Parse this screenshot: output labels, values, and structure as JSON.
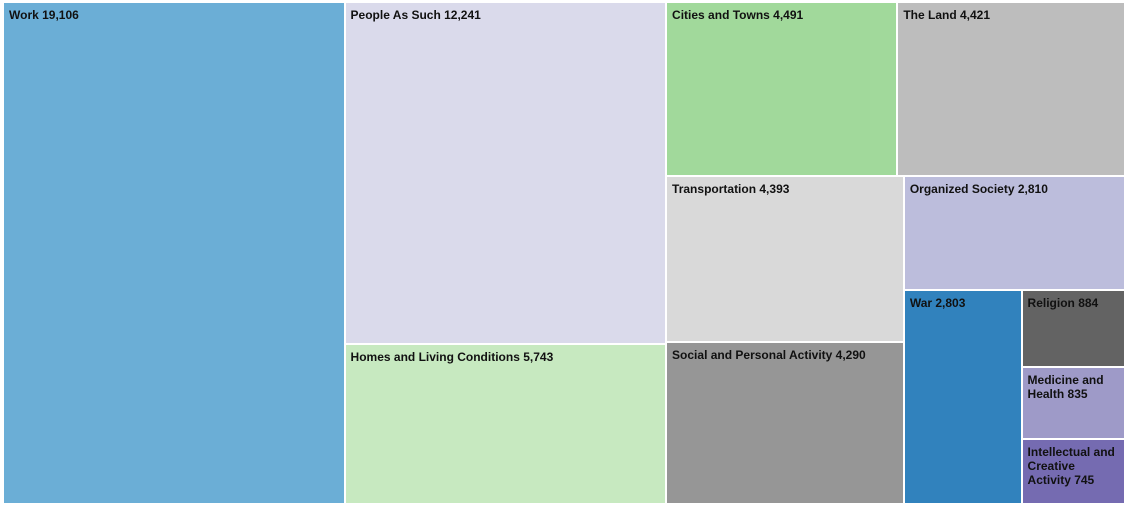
{
  "chart_data": {
    "type": "treemap",
    "items": [
      {
        "name": "Work",
        "value": 19106,
        "label": "Work 19,106",
        "color": "#6baed6"
      },
      {
        "name": "People As Such",
        "value": 12241,
        "label": "People As Such 12,241",
        "color": "#dadaeb"
      },
      {
        "name": "Homes and Living Conditions",
        "value": 5743,
        "label": "Homes and Living Conditions 5,743",
        "color": "#c7e9c0"
      },
      {
        "name": "Cities and Towns",
        "value": 4491,
        "label": "Cities and Towns 4,491",
        "color": "#a1d99b"
      },
      {
        "name": "The Land",
        "value": 4421,
        "label": "The Land 4,421",
        "color": "#bdbdbd"
      },
      {
        "name": "Transportation",
        "value": 4393,
        "label": "Transportation 4,393",
        "color": "#d9d9d9"
      },
      {
        "name": "Social and Personal Activity",
        "value": 4290,
        "label": "Social and Personal Activity 4,290",
        "color": "#969696"
      },
      {
        "name": "Organized Society",
        "value": 2810,
        "label": "Organized Society 2,810",
        "color": "#bcbddc"
      },
      {
        "name": "War",
        "value": 2803,
        "label": "War 2,803",
        "color": "#3182bd"
      },
      {
        "name": "Religion",
        "value": 884,
        "label": "Religion 884",
        "color": "#636363"
      },
      {
        "name": "Medicine and Health",
        "value": 835,
        "label": "Medicine and Health 835",
        "color": "#9e9ac8"
      },
      {
        "name": "Intellectual and Creative Activity",
        "value": 745,
        "label": "Intellectual and Creative Activity 745",
        "color": "#756bb1"
      }
    ]
  }
}
